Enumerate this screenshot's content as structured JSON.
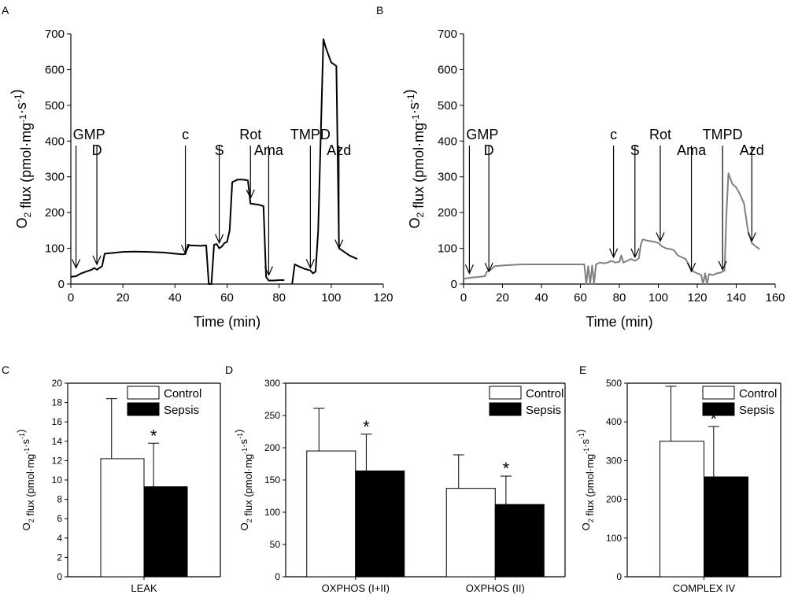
{
  "panels": {
    "A": {
      "letter": "A"
    },
    "B": {
      "letter": "B"
    },
    "C": {
      "letter": "C"
    },
    "D": {
      "letter": "D"
    },
    "E": {
      "letter": "E"
    }
  },
  "chart_data": [
    {
      "id": "A",
      "type": "line",
      "xlabel": "Time (min)",
      "ylabel_parts": [
        "O",
        "2",
        " flux (pmol·mg",
        "-1",
        "·s",
        "-1",
        ")"
      ],
      "xlim": [
        0,
        120
      ],
      "ylim": [
        0,
        700
      ],
      "xticks": [
        0,
        20,
        40,
        60,
        80,
        100,
        120
      ],
      "yticks": [
        0,
        100,
        200,
        300,
        400,
        500,
        600,
        700
      ],
      "color": "#000000",
      "points": [
        [
          0,
          20
        ],
        [
          2,
          22
        ],
        [
          4,
          30
        ],
        [
          6,
          35
        ],
        [
          8,
          40
        ],
        [
          9,
          45
        ],
        [
          10,
          40
        ],
        [
          11,
          45
        ],
        [
          12,
          50
        ],
        [
          13,
          85
        ],
        [
          16,
          87
        ],
        [
          20,
          90
        ],
        [
          24,
          91
        ],
        [
          30,
          90
        ],
        [
          36,
          88
        ],
        [
          40,
          85
        ],
        [
          43,
          83
        ],
        [
          44,
          84
        ],
        [
          45,
          110
        ],
        [
          46,
          108
        ],
        [
          50,
          107
        ],
        [
          52,
          108
        ],
        [
          53,
          0
        ],
        [
          54,
          0
        ],
        [
          55,
          110
        ],
        [
          56,
          112
        ],
        [
          57,
          100
        ],
        [
          58,
          105
        ],
        [
          59,
          115
        ],
        [
          60,
          118
        ],
        [
          61,
          150
        ],
        [
          62,
          285
        ],
        [
          64,
          292
        ],
        [
          66,
          292
        ],
        [
          68,
          290
        ],
        [
          69,
          225
        ],
        [
          72,
          222
        ],
        [
          74,
          218
        ],
        [
          75,
          20
        ],
        [
          76,
          10
        ],
        [
          78,
          10
        ],
        [
          80,
          11
        ],
        [
          82,
          11
        ],
        [
          82,
          null
        ],
        [
          85,
          0
        ],
        [
          86,
          55
        ],
        [
          88,
          48
        ],
        [
          90,
          42
        ],
        [
          92,
          38
        ],
        [
          93,
          30
        ],
        [
          94,
          35
        ],
        [
          95,
          150
        ],
        [
          97,
          685
        ],
        [
          98,
          660
        ],
        [
          100,
          620
        ],
        [
          102,
          610
        ],
        [
          103,
          100
        ],
        [
          105,
          90
        ],
        [
          107,
          80
        ],
        [
          110,
          70
        ]
      ],
      "events": [
        {
          "label": "GMP",
          "x": 2,
          "y": 45
        },
        {
          "label": "D",
          "x": 10,
          "y": 55
        },
        {
          "label": "c",
          "x": 44,
          "y": 85
        },
        {
          "label": "S",
          "x": 57,
          "y": 115
        },
        {
          "label": "Rot",
          "x": 69,
          "y": 240
        },
        {
          "label": "Ama",
          "x": 76,
          "y": 25
        },
        {
          "label": "TMPD",
          "x": 92,
          "y": 45
        },
        {
          "label": "Azd",
          "x": 103,
          "y": 100
        }
      ]
    },
    {
      "id": "B",
      "type": "line",
      "xlabel": "Time (min)",
      "ylabel_parts": [
        "O",
        "2",
        " flux (pmol·mg",
        "-1",
        "·s",
        "-1",
        ")"
      ],
      "xlim": [
        0,
        160
      ],
      "ylim": [
        0,
        700
      ],
      "xticks": [
        0,
        20,
        40,
        60,
        80,
        100,
        120,
        140,
        160
      ],
      "yticks": [
        0,
        100,
        200,
        300,
        400,
        500,
        600,
        700
      ],
      "color": "#808080",
      "points": [
        [
          0,
          15
        ],
        [
          4,
          18
        ],
        [
          8,
          20
        ],
        [
          11,
          22
        ],
        [
          12,
          35
        ],
        [
          14,
          40
        ],
        [
          16,
          50
        ],
        [
          20,
          52
        ],
        [
          30,
          55
        ],
        [
          40,
          55
        ],
        [
          50,
          55
        ],
        [
          60,
          55
        ],
        [
          62,
          55
        ],
        [
          63,
          0
        ],
        [
          64,
          50
        ],
        [
          65,
          0
        ],
        [
          66,
          52
        ],
        [
          67,
          0
        ],
        [
          68,
          55
        ],
        [
          70,
          60
        ],
        [
          72,
          58
        ],
        [
          74,
          60
        ],
        [
          76,
          65
        ],
        [
          78,
          60
        ],
        [
          80,
          62
        ],
        [
          81,
          80
        ],
        [
          82,
          60
        ],
        [
          84,
          65
        ],
        [
          86,
          70
        ],
        [
          88,
          65
        ],
        [
          90,
          72
        ],
        [
          91,
          110
        ],
        [
          92,
          125
        ],
        [
          94,
          122
        ],
        [
          96,
          120
        ],
        [
          98,
          118
        ],
        [
          100,
          115
        ],
        [
          102,
          105
        ],
        [
          104,
          100
        ],
        [
          106,
          98
        ],
        [
          108,
          95
        ],
        [
          110,
          80
        ],
        [
          112,
          75
        ],
        [
          114,
          70
        ],
        [
          116,
          50
        ],
        [
          118,
          35
        ],
        [
          120,
          30
        ],
        [
          122,
          25
        ],
        [
          123,
          0
        ],
        [
          124,
          30
        ],
        [
          125,
          0
        ],
        [
          126,
          28
        ],
        [
          128,
          25
        ],
        [
          130,
          30
        ],
        [
          132,
          32
        ],
        [
          134,
          38
        ],
        [
          135,
          200
        ],
        [
          136,
          310
        ],
        [
          138,
          280
        ],
        [
          140,
          270
        ],
        [
          142,
          250
        ],
        [
          144,
          225
        ],
        [
          146,
          150
        ],
        [
          148,
          115
        ],
        [
          150,
          105
        ],
        [
          152,
          98
        ]
      ],
      "events": [
        {
          "label": "GMP",
          "x": 3,
          "y": 30
        },
        {
          "label": "D",
          "x": 13,
          "y": 35
        },
        {
          "label": "c",
          "x": 77,
          "y": 75
        },
        {
          "label": "S",
          "x": 88,
          "y": 75
        },
        {
          "label": "Rot",
          "x": 101,
          "y": 120
        },
        {
          "label": "Ama",
          "x": 117,
          "y": 35
        },
        {
          "label": "TMPD",
          "x": 133,
          "y": 40
        },
        {
          "label": "Azd",
          "x": 148,
          "y": 120
        }
      ]
    },
    {
      "id": "C",
      "type": "bar",
      "categories": [
        "LEAK"
      ],
      "series": [
        {
          "name": "Control",
          "values": [
            12.2
          ],
          "errors": [
            18.4
          ],
          "fill": "#ffffff"
        },
        {
          "name": "Sepsis",
          "values": [
            9.3
          ],
          "errors": [
            13.8
          ],
          "fill": "#000000",
          "significance": [
            "*"
          ]
        }
      ],
      "ylabel_parts": [
        "O",
        "2",
        " flux (pmol·mg",
        "-1",
        "·s",
        "-1",
        ")"
      ],
      "ylim": [
        0,
        20
      ],
      "yticks": [
        0,
        2,
        4,
        6,
        8,
        10,
        12,
        14,
        16,
        18,
        20
      ],
      "legend": "top-right"
    },
    {
      "id": "D",
      "type": "bar",
      "categories": [
        "OXPHOS (I+II)",
        "OXPHOS (II)"
      ],
      "series": [
        {
          "name": "Control",
          "values": [
            195,
            137
          ],
          "errors": [
            261,
            189
          ],
          "fill": "#ffffff"
        },
        {
          "name": "Sepsis",
          "values": [
            164,
            112
          ],
          "errors": [
            221,
            156
          ],
          "fill": "#000000",
          "significance": [
            "*",
            "*"
          ]
        }
      ],
      "ylabel_parts": [
        "O",
        "2",
        " flux (pmol·mg",
        "-1",
        "·s",
        "-1",
        ")"
      ],
      "ylim": [
        0,
        300
      ],
      "yticks": [
        0,
        50,
        100,
        150,
        200,
        250,
        300
      ],
      "legend": "top-right"
    },
    {
      "id": "E",
      "type": "bar",
      "categories": [
        "COMPLEX IV"
      ],
      "series": [
        {
          "name": "Control",
          "values": [
            350
          ],
          "errors": [
            492
          ],
          "fill": "#ffffff"
        },
        {
          "name": "Sepsis",
          "values": [
            258
          ],
          "errors": [
            388
          ],
          "fill": "#000000",
          "significance": [
            "*"
          ]
        }
      ],
      "ylabel_parts": [
        "O",
        "2",
        " flux (pmol·mg",
        "-1",
        "·s",
        "-1",
        ")"
      ],
      "ylim": [
        0,
        500
      ],
      "yticks": [
        0,
        100,
        200,
        300,
        400,
        500
      ],
      "legend": "top-right"
    }
  ]
}
